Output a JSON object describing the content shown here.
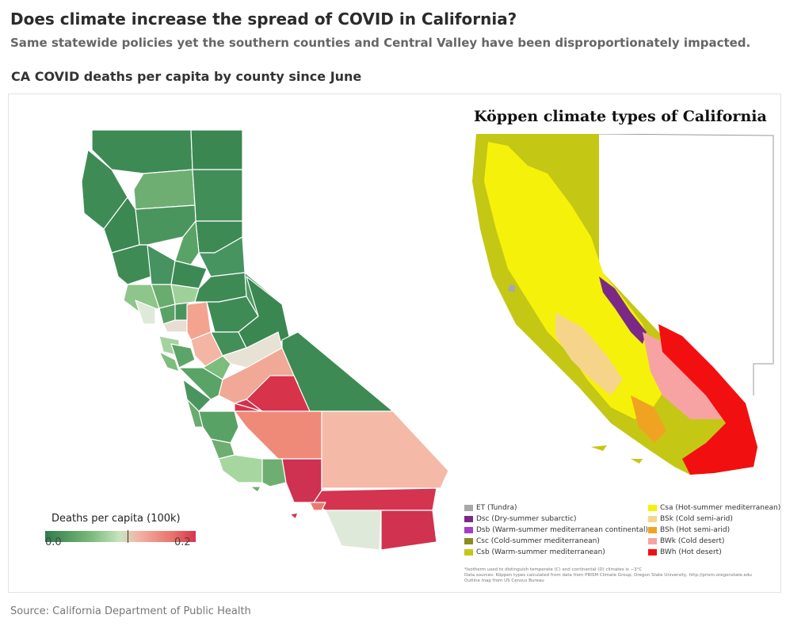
{
  "header": {
    "title": "Does climate increase the spread of COVID in California?",
    "subtitle": "Same statewide policies yet the southern counties and Central Valley have been disproportionately impacted.",
    "section_title": "CA COVID deaths per capita by county since June"
  },
  "legend": {
    "title": "Deaths per capita (100k)",
    "min_label": "0.0",
    "max_label": "0.2",
    "colors": [
      "#2f7d4b",
      "#7ab87a",
      "#c9e4c0",
      "#f3b3a3",
      "#e8716a",
      "#d8354d"
    ]
  },
  "koppen": {
    "title": "Köppen climate types of California",
    "legend": [
      {
        "code": "ET",
        "label": "ET (Tundra)",
        "color": "#a8a8a8"
      },
      {
        "code": "Dsc",
        "label": "Dsc (Dry-summer subarctic)",
        "color": "#7a2a86"
      },
      {
        "code": "Dsb",
        "label": "Dsb (Warm-summer mediterranean continental)",
        "color": "#a63ec4"
      },
      {
        "code": "Csc",
        "label": "Csc (Cold-summer mediterranean)",
        "color": "#8c8c1e"
      },
      {
        "code": "Csb",
        "label": "Csb (Warm-summer mediterranean)",
        "color": "#c5c715"
      },
      {
        "code": "Csa",
        "label": "Csa (Hot-summer mediterranean)",
        "color": "#f5f10a"
      },
      {
        "code": "BSk",
        "label": "BSk (Cold semi-arid)",
        "color": "#f6d58a"
      },
      {
        "code": "BSh",
        "label": "BSh (Hot semi-arid)",
        "color": "#f0a321"
      },
      {
        "code": "BWk",
        "label": "BWk (Cold desert)",
        "color": "#f7a3a3"
      },
      {
        "code": "BWh",
        "label": "BWh (Hot desert)",
        "color": "#f20f0f"
      }
    ],
    "notes": [
      "*Isotherm used to distinguish temperate (C) and continental (D) climates is −3°C",
      "Data sources: Köppen types calculated from data from PRISM Climate Group, Oregon State University, http://prism.oregonstate.edu",
      "Outline map from US Census Bureau"
    ]
  },
  "source": "Source: California Department of Public Health"
}
